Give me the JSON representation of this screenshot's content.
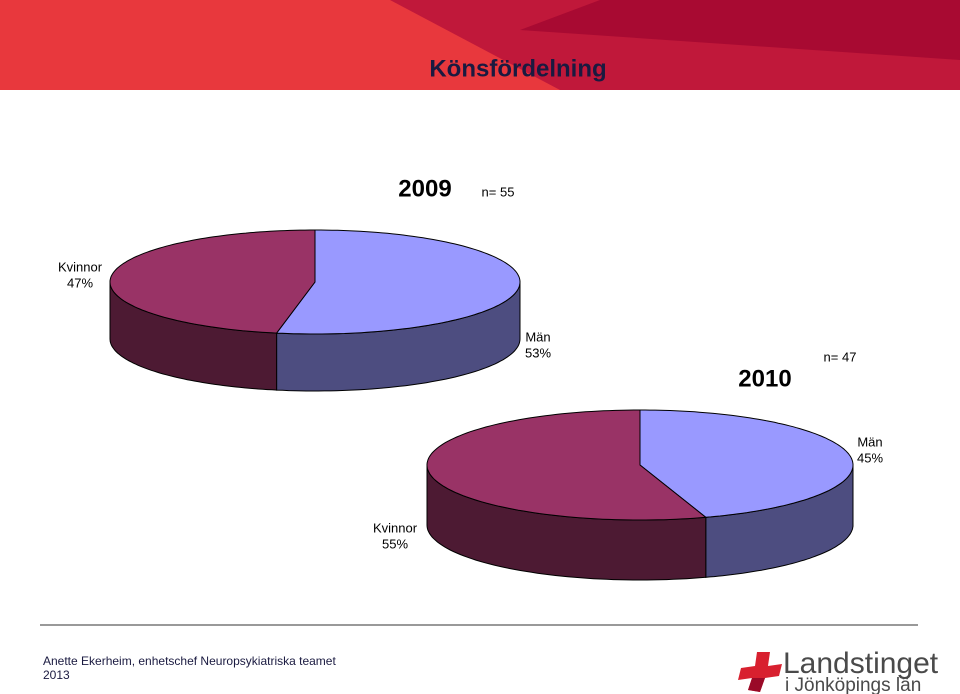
{
  "header": {
    "title": "Könsfördelning"
  },
  "chart_data": [
    {
      "type": "pie",
      "title": "2009",
      "subtitle": "n= 55",
      "categories": [
        "Kvinnor",
        "Män"
      ],
      "values": [
        47,
        53
      ],
      "value_labels": [
        "47%",
        "53%"
      ],
      "colors": [
        "#993366",
        "#9999ff"
      ]
    },
    {
      "type": "pie",
      "title": "2010",
      "subtitle": "n= 47",
      "categories": [
        "Kvinnor",
        "Män"
      ],
      "values": [
        55,
        45
      ],
      "value_labels": [
        "55%",
        "45%"
      ],
      "colors": [
        "#993366",
        "#9999ff"
      ]
    }
  ],
  "footer": {
    "author": "Anette Ekerheim, enhetschef Neuropsykiatriska teamet",
    "year": "2013",
    "logo_name": "Landstinget",
    "logo_region": "i Jönköpings län"
  }
}
